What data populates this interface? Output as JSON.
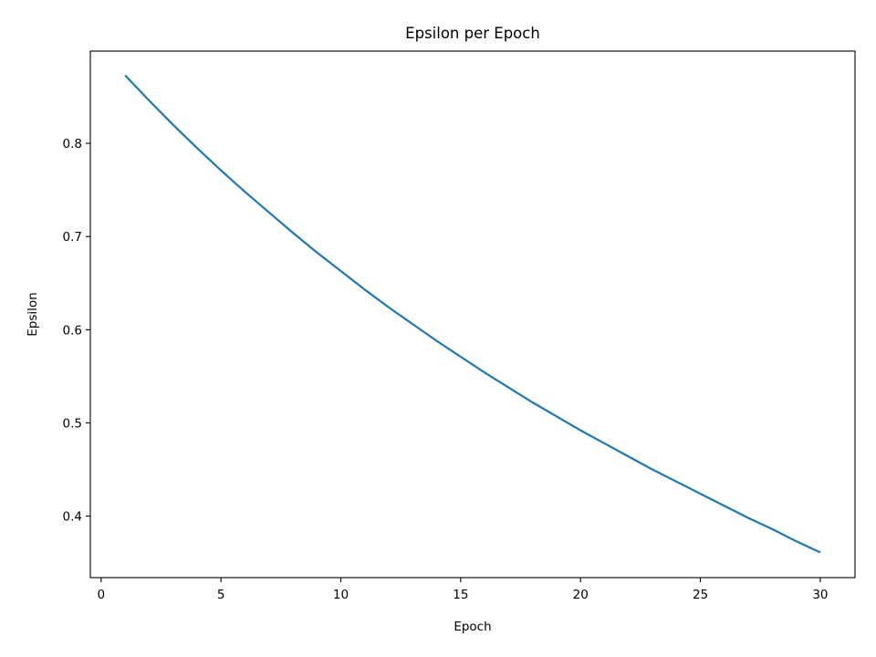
{
  "chart_data": {
    "type": "line",
    "title": "Epsilon per Epoch",
    "xlabel": "Epoch",
    "ylabel": "Epsilon",
    "xlim": [
      -0.45,
      31.45
    ],
    "ylim": [
      0.334,
      0.899
    ],
    "x_ticks": [
      0,
      5,
      10,
      15,
      20,
      25,
      30
    ],
    "x_tick_labels": [
      "0",
      "5",
      "10",
      "15",
      "20",
      "25",
      "30"
    ],
    "y_ticks": [
      0.4,
      0.5,
      0.6,
      0.7,
      0.8
    ],
    "y_tick_labels": [
      "0.4",
      "0.5",
      "0.6",
      "0.7",
      "0.8"
    ],
    "grid": false,
    "colors": {
      "series": "#1f77b4",
      "axes": "#000000",
      "background": "#ffffff"
    },
    "series": [
      {
        "x": [
          1,
          2,
          3,
          4,
          5,
          6,
          7,
          8,
          9,
          10,
          11,
          12,
          13,
          14,
          15,
          16,
          17,
          18,
          19,
          20,
          21,
          22,
          23,
          24,
          25,
          26,
          27,
          28,
          29,
          30
        ],
        "values": [
          0.873,
          0.846,
          0.82,
          0.795,
          0.771,
          0.748,
          0.726,
          0.704,
          0.683,
          0.663,
          0.643,
          0.624,
          0.606,
          0.588,
          0.571,
          0.554,
          0.538,
          0.522,
          0.507,
          0.492,
          0.478,
          0.464,
          0.45,
          0.437,
          0.424,
          0.411,
          0.398,
          0.386,
          0.373,
          0.361
        ]
      }
    ]
  }
}
